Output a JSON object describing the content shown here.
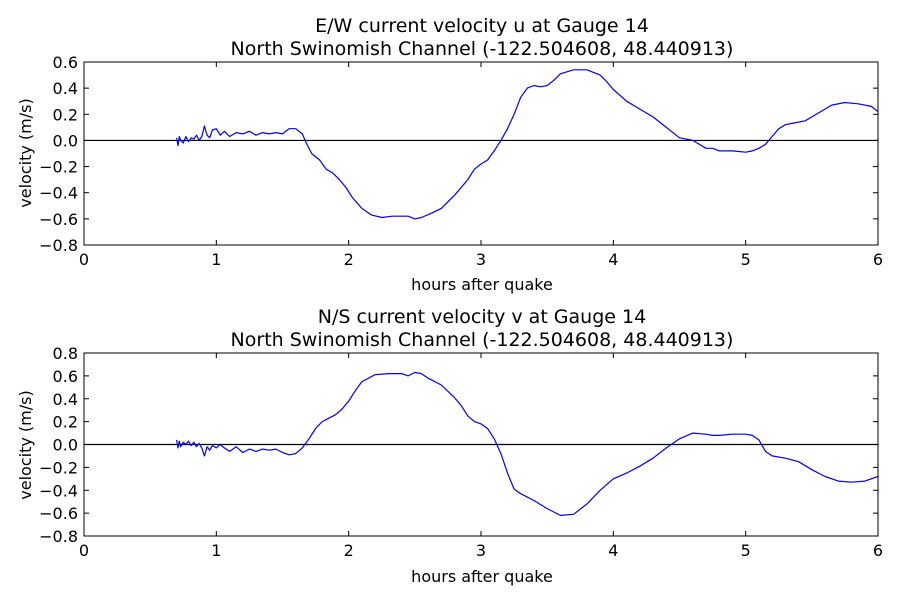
{
  "chart_data": [
    {
      "type": "line",
      "title": "E/W current velocity u at Gauge 14",
      "subtitle": "North Swinomish Channel  (-122.504608, 48.440913)",
      "xlabel": "hours after quake",
      "ylabel": "velocity (m/s)",
      "xlim": [
        0,
        6
      ],
      "ylim": [
        -0.8,
        0.6
      ],
      "xticks": [
        0,
        1,
        2,
        3,
        4,
        5,
        6
      ],
      "xtick_labels": [
        "0",
        "1",
        "2",
        "3",
        "4",
        "5",
        "6"
      ],
      "yticks": [
        -0.8,
        -0.6,
        -0.4,
        -0.2,
        0.0,
        0.2,
        0.4,
        0.6
      ],
      "ytick_labels": [
        "−0.8",
        "−0.6",
        "−0.4",
        "−0.2",
        "0.0",
        "0.2",
        "0.4",
        "0.6"
      ],
      "grid": false,
      "reference_line": 0.0,
      "series": [
        {
          "color": "#0000ff",
          "x": [
            0.7,
            0.71,
            0.72,
            0.73,
            0.75,
            0.77,
            0.79,
            0.81,
            0.83,
            0.85,
            0.87,
            0.89,
            0.91,
            0.93,
            0.95,
            0.97,
            1.0,
            1.03,
            1.06,
            1.1,
            1.15,
            1.2,
            1.25,
            1.3,
            1.35,
            1.4,
            1.45,
            1.5,
            1.55,
            1.6,
            1.65,
            1.68,
            1.72,
            1.78,
            1.83,
            1.88,
            1.93,
            1.98,
            2.03,
            2.1,
            2.17,
            2.25,
            2.33,
            2.4,
            2.45,
            2.5,
            2.55,
            2.62,
            2.7,
            2.8,
            2.9,
            2.95,
            3.0,
            3.05,
            3.1,
            3.15,
            3.2,
            3.25,
            3.3,
            3.35,
            3.4,
            3.45,
            3.5,
            3.55,
            3.6,
            3.7,
            3.8,
            3.9,
            3.95,
            4.0,
            4.1,
            4.2,
            4.3,
            4.4,
            4.5,
            4.6,
            4.7,
            4.75,
            4.8,
            4.9,
            5.0,
            5.05,
            5.1,
            5.15,
            5.2,
            5.25,
            5.3,
            5.35,
            5.45,
            5.55,
            5.65,
            5.75,
            5.85,
            5.95,
            6.0
          ],
          "y": [
            0.02,
            -0.04,
            0.03,
            0.0,
            -0.02,
            0.03,
            -0.01,
            0.02,
            0.01,
            0.04,
            0.0,
            0.03,
            0.11,
            0.04,
            0.02,
            0.08,
            0.09,
            0.04,
            0.07,
            0.03,
            0.06,
            0.05,
            0.07,
            0.04,
            0.06,
            0.05,
            0.06,
            0.05,
            0.09,
            0.09,
            0.05,
            -0.02,
            -0.1,
            -0.15,
            -0.22,
            -0.25,
            -0.3,
            -0.36,
            -0.44,
            -0.52,
            -0.57,
            -0.59,
            -0.58,
            -0.58,
            -0.58,
            -0.6,
            -0.59,
            -0.56,
            -0.52,
            -0.42,
            -0.3,
            -0.22,
            -0.18,
            -0.15,
            -0.08,
            0.0,
            0.09,
            0.2,
            0.33,
            0.4,
            0.42,
            0.41,
            0.42,
            0.46,
            0.51,
            0.54,
            0.54,
            0.5,
            0.45,
            0.39,
            0.3,
            0.24,
            0.18,
            0.1,
            0.02,
            0.0,
            -0.06,
            -0.06,
            -0.08,
            -0.08,
            -0.09,
            -0.08,
            -0.06,
            -0.03,
            0.03,
            0.09,
            0.12,
            0.13,
            0.15,
            0.21,
            0.27,
            0.29,
            0.28,
            0.26,
            0.22
          ]
        }
      ]
    },
    {
      "type": "line",
      "title": "N/S current velocity v at Gauge 14",
      "subtitle": "North Swinomish Channel  (-122.504608, 48.440913)",
      "xlabel": "hours after quake",
      "ylabel": "velocity (m/s)",
      "xlim": [
        0,
        6
      ],
      "ylim": [
        -0.8,
        0.8
      ],
      "xticks": [
        0,
        1,
        2,
        3,
        4,
        5,
        6
      ],
      "xtick_labels": [
        "0",
        "1",
        "2",
        "3",
        "4",
        "5",
        "6"
      ],
      "yticks": [
        -0.8,
        -0.6,
        -0.4,
        -0.2,
        0.0,
        0.2,
        0.4,
        0.6,
        0.8
      ],
      "ytick_labels": [
        "−0.8",
        "−0.6",
        "−0.4",
        "−0.2",
        "0.0",
        "0.2",
        "0.4",
        "0.6",
        "0.8"
      ],
      "grid": false,
      "reference_line": 0.0,
      "series": [
        {
          "color": "#0000ff",
          "x": [
            0.7,
            0.71,
            0.72,
            0.73,
            0.75,
            0.77,
            0.79,
            0.81,
            0.83,
            0.85,
            0.87,
            0.89,
            0.91,
            0.93,
            0.95,
            0.97,
            1.0,
            1.03,
            1.06,
            1.1,
            1.15,
            1.2,
            1.25,
            1.3,
            1.35,
            1.4,
            1.45,
            1.5,
            1.55,
            1.6,
            1.65,
            1.7,
            1.75,
            1.8,
            1.85,
            1.9,
            1.95,
            2.0,
            2.05,
            2.1,
            2.2,
            2.3,
            2.4,
            2.45,
            2.5,
            2.55,
            2.6,
            2.7,
            2.8,
            2.85,
            2.9,
            2.95,
            3.0,
            3.05,
            3.1,
            3.15,
            3.2,
            3.25,
            3.3,
            3.4,
            3.5,
            3.6,
            3.7,
            3.8,
            3.9,
            4.0,
            4.1,
            4.2,
            4.3,
            4.4,
            4.5,
            4.6,
            4.7,
            4.75,
            4.8,
            4.9,
            5.0,
            5.05,
            5.1,
            5.15,
            5.2,
            5.3,
            5.4,
            5.5,
            5.6,
            5.7,
            5.8,
            5.9,
            6.0
          ],
          "y": [
            0.04,
            -0.03,
            0.03,
            -0.02,
            0.02,
            0.0,
            0.03,
            -0.01,
            0.02,
            -0.02,
            0.01,
            -0.03,
            -0.1,
            -0.02,
            -0.05,
            -0.01,
            -0.03,
            0.0,
            -0.03,
            -0.06,
            -0.02,
            -0.07,
            -0.04,
            -0.06,
            -0.04,
            -0.05,
            -0.04,
            -0.07,
            -0.09,
            -0.08,
            -0.03,
            0.05,
            0.14,
            0.2,
            0.23,
            0.26,
            0.31,
            0.38,
            0.47,
            0.55,
            0.61,
            0.62,
            0.62,
            0.6,
            0.63,
            0.62,
            0.58,
            0.52,
            0.41,
            0.34,
            0.25,
            0.2,
            0.18,
            0.14,
            0.05,
            -0.08,
            -0.25,
            -0.39,
            -0.43,
            -0.49,
            -0.56,
            -0.62,
            -0.61,
            -0.52,
            -0.4,
            -0.3,
            -0.25,
            -0.19,
            -0.12,
            -0.03,
            0.05,
            0.1,
            0.09,
            0.08,
            0.08,
            0.09,
            0.09,
            0.08,
            0.04,
            -0.06,
            -0.1,
            -0.12,
            -0.15,
            -0.22,
            -0.28,
            -0.32,
            -0.33,
            -0.32,
            -0.28
          ]
        }
      ]
    }
  ]
}
